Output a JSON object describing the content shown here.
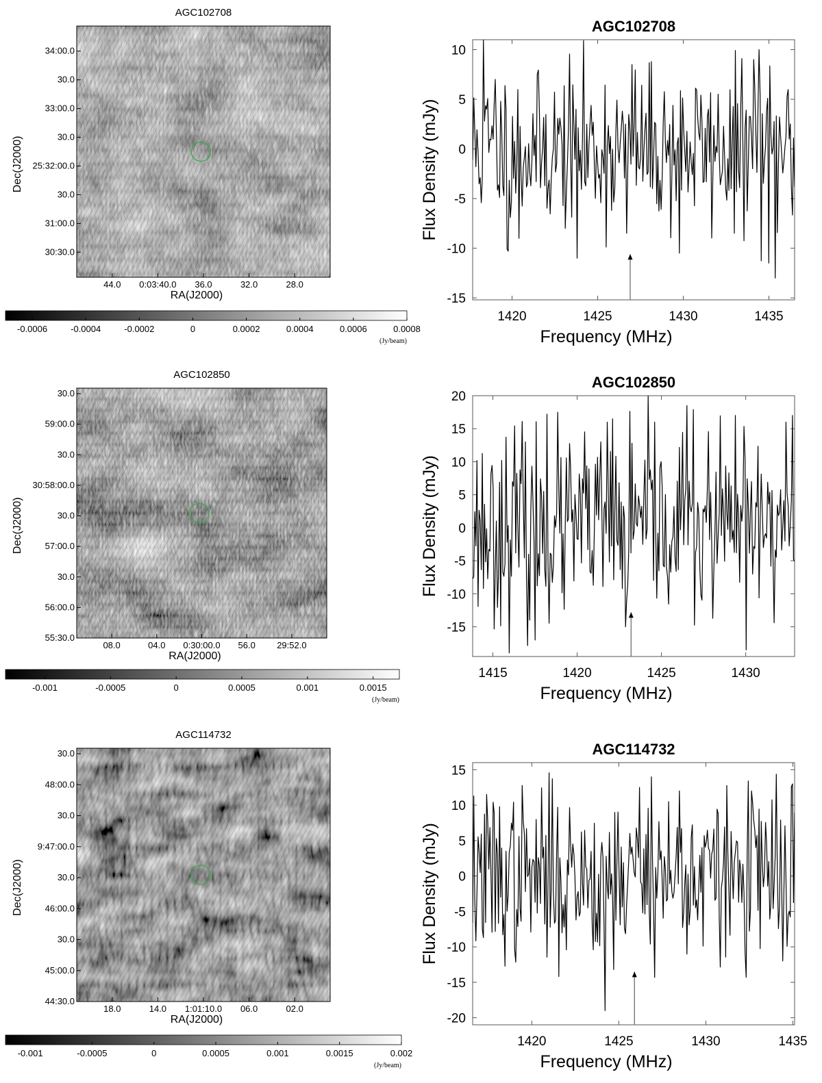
{
  "panels": [
    {
      "name": "AGC102708",
      "image": {
        "title": "AGC102708",
        "xlabel": "RA(J2000)",
        "ylabel": "Dec(J2000)",
        "xticks": [
          "44.0",
          "0:03:40.0",
          "36.0",
          "32.0",
          "28.0"
        ],
        "yticks": [
          "34:00.0",
          "30.0",
          "33:00.0",
          "30.0",
          "25:32:00.0",
          "30.0",
          "31:00.0",
          "30:30.0"
        ],
        "colorbar": {
          "ticks": [
            "-0.0006",
            "-0.0004",
            "-0.0002",
            "0",
            "0.0002",
            "0.0004",
            "0.0006",
            "0.0008"
          ],
          "unit": "(Jy/beam)",
          "range": [
            -0.0007,
            0.0008
          ]
        },
        "marker_color": "#3aa64a"
      },
      "chart_data": {
        "type": "line",
        "title": "AGC102708",
        "xlabel": "Frequency (MHz)",
        "ylabel": "Flux Density (mJy)",
        "xlim": [
          1417.7,
          1436.5
        ],
        "ylim": [
          -15.2,
          11
        ],
        "xticks": [
          "1420",
          "1425",
          "1430",
          "1435"
        ],
        "yticks": [
          "10",
          "5",
          "0",
          "-5",
          "-10",
          "-15"
        ],
        "yticks_values": [
          10,
          5,
          0,
          -5,
          -10,
          -15
        ],
        "xticks_values": [
          1420,
          1425,
          1430,
          1435
        ],
        "arrow_x": 1426.9,
        "arrow_tip_y": -10.6,
        "seed": 11,
        "n_points": 300,
        "noise_sd": 4.0,
        "peaks": [
          [
            1418.3,
            11
          ],
          [
            1419.0,
            7
          ],
          [
            1419.8,
            -10.3
          ],
          [
            1420.4,
            -9
          ],
          [
            1421.5,
            7.5
          ],
          [
            1423.8,
            -11
          ],
          [
            1426.7,
            -8.5
          ],
          [
            1427.0,
            8.5
          ],
          [
            1429.8,
            -10.5
          ],
          [
            1433.0,
            -8.5
          ],
          [
            1434.1,
            9
          ],
          [
            1435.0,
            -11.5
          ],
          [
            1435.4,
            -13
          ],
          [
            1434.4,
            10
          ]
        ]
      }
    },
    {
      "name": "AGC102850",
      "image": {
        "title": "AGC102850",
        "xlabel": "RA(J2000)",
        "ylabel": "Dec(J2000)",
        "xticks": [
          "08.0",
          "04.0",
          "0:30:00.0",
          "56.0",
          "29:52.0"
        ],
        "yticks": [
          "30.0",
          "59:00.0",
          "30.0",
          "30:58:00.0",
          "30.0",
          "57:00.0",
          "30.0",
          "56:00.0",
          "55:30.0"
        ],
        "colorbar": {
          "ticks": [
            "-0.001",
            "-0.0005",
            "0",
            "0.0005",
            "0.001",
            "0.0015"
          ],
          "unit": "(Jy/beam)",
          "range": [
            -0.0013,
            0.0017
          ]
        },
        "marker_color": "#3aa64a"
      },
      "chart_data": {
        "type": "line",
        "title": "AGC102850",
        "xlabel": "Frequency (MHz)",
        "ylabel": "Flux Density (mJy)",
        "xlim": [
          1413.8,
          1432.9
        ],
        "ylim": [
          -19.5,
          20
        ],
        "xticks": [
          "1415",
          "1420",
          "1425",
          "1430"
        ],
        "yticks": [
          "20",
          "15",
          "10",
          "5",
          "0",
          "-5",
          "-10",
          "-15"
        ],
        "yticks_values": [
          20,
          15,
          10,
          5,
          0,
          -5,
          -10,
          -15
        ],
        "xticks_values": [
          1415,
          1420,
          1425,
          1430
        ],
        "arrow_x": 1423.2,
        "arrow_tip_y": -12.8,
        "seed": 23,
        "n_points": 300,
        "noise_sd": 7.0,
        "peaks": [
          [
            1417.2,
            -14
          ],
          [
            1417.5,
            -17
          ],
          [
            1418.2,
            17.2
          ],
          [
            1421.8,
            16
          ],
          [
            1422.1,
            16.5
          ],
          [
            1422.9,
            -15
          ],
          [
            1424.6,
            16
          ],
          [
            1429.4,
            17
          ],
          [
            1430.0,
            -18.5
          ],
          [
            1426.5,
            18.5
          ],
          [
            1432.4,
            16
          ],
          [
            1432.8,
            17
          ]
        ]
      }
    },
    {
      "name": "AGC114732",
      "image": {
        "title": "AGC114732",
        "xlabel": "RA(J2000)",
        "ylabel": "Dec(J2000)",
        "xticks": [
          "18.0",
          "14.0",
          "1:01:10.0",
          "06.0",
          "02.0"
        ],
        "yticks": [
          "30.0",
          "48:00.0",
          "30.0",
          "9:47:00.0",
          "30.0",
          "46:00.0",
          "30.0",
          "45:00.0",
          "44:30.0"
        ],
        "colorbar": {
          "ticks": [
            "-0.001",
            "-0.0005",
            "0",
            "0.0005",
            "0.001",
            "0.0015",
            "0.002"
          ],
          "unit": "(Jy/beam)",
          "range": [
            -0.0012,
            0.002
          ]
        },
        "marker_color": "#3aa64a"
      },
      "chart_data": {
        "type": "line",
        "title": "AGC114732",
        "xlabel": "Frequency (MHz)",
        "ylabel": "Flux Density (mJy)",
        "xlim": [
          1416.6,
          1435.1
        ],
        "ylim": [
          -21,
          16
        ],
        "xticks": [
          "1420",
          "1425",
          "1430",
          "1435"
        ],
        "yticks": [
          "15",
          "10",
          "5",
          "0",
          "-5",
          "-10",
          "-15",
          "-20"
        ],
        "yticks_values": [
          15,
          10,
          5,
          0,
          -5,
          -10,
          -15,
          -20
        ],
        "xticks_values": [
          1420,
          1425,
          1430,
          1435
        ],
        "arrow_x": 1425.9,
        "arrow_tip_y": -13.5,
        "seed": 37,
        "n_points": 300,
        "noise_sd": 6.0,
        "peaks": [
          [
            1424.2,
            -19
          ],
          [
            1426.2,
            12.5
          ],
          [
            1426.9,
            14
          ],
          [
            1428.5,
            12
          ],
          [
            1432.6,
            12
          ],
          [
            1434.4,
            -12
          ],
          [
            1435.0,
            13
          ]
        ]
      }
    }
  ]
}
